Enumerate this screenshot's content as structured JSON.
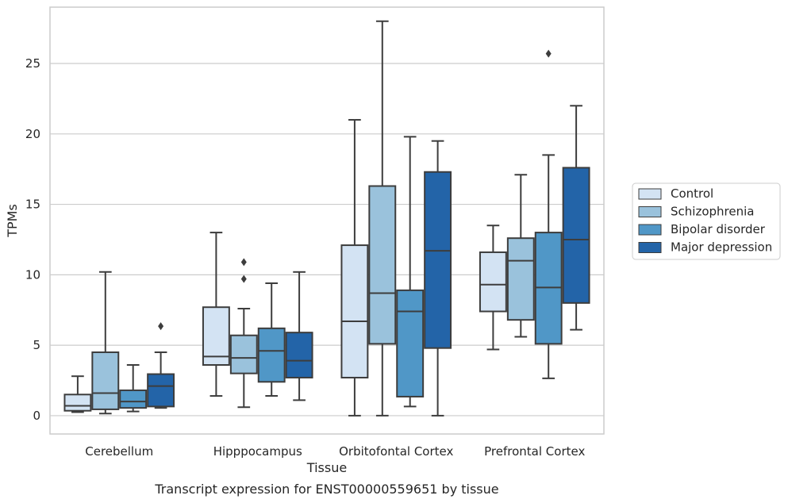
{
  "chart_data": {
    "type": "box",
    "caption": "Transcript expression for ENST00000559651 by tissue",
    "xlabel": "Tissue",
    "ylabel": "TPMs",
    "ylim": [
      -1.3,
      29.0
    ],
    "yticks": [
      0,
      5,
      10,
      15,
      20,
      25
    ],
    "grid": "horizontal",
    "legend_position": "right",
    "categories": [
      "Cerebellum",
      "Hipppocampus",
      "Orbitofontal Cortex",
      "Prefrontal Cortex"
    ],
    "series": [
      {
        "name": "Control",
        "color": "#d3e3f3",
        "boxes": [
          {
            "whislo": 0.25,
            "q1": 0.35,
            "med": 0.7,
            "q3": 1.5,
            "whishi": 2.8,
            "fliers": []
          },
          {
            "whislo": 1.4,
            "q1": 3.6,
            "med": 4.2,
            "q3": 7.7,
            "whishi": 13.0,
            "fliers": []
          },
          {
            "whislo": 0.0,
            "q1": 2.7,
            "med": 6.7,
            "q3": 12.1,
            "whishi": 21.0,
            "fliers": []
          },
          {
            "whislo": 4.7,
            "q1": 7.4,
            "med": 9.3,
            "q3": 11.6,
            "whishi": 13.5,
            "fliers": []
          }
        ]
      },
      {
        "name": "Schizophrenia",
        "color": "#9ac2dc",
        "boxes": [
          {
            "whislo": 0.15,
            "q1": 0.45,
            "med": 1.6,
            "q3": 4.5,
            "whishi": 10.2,
            "fliers": []
          },
          {
            "whislo": 0.6,
            "q1": 3.0,
            "med": 4.1,
            "q3": 5.7,
            "whishi": 7.6,
            "fliers": [
              9.7,
              10.9
            ]
          },
          {
            "whislo": 0.0,
            "q1": 5.1,
            "med": 8.7,
            "q3": 16.3,
            "whishi": 28.0,
            "fliers": []
          },
          {
            "whislo": 5.6,
            "q1": 6.8,
            "med": 11.0,
            "q3": 12.6,
            "whishi": 17.1,
            "fliers": []
          }
        ]
      },
      {
        "name": "Bipolar disorder",
        "color": "#5097c7",
        "boxes": [
          {
            "whislo": 0.3,
            "q1": 0.55,
            "med": 1.0,
            "q3": 1.8,
            "whishi": 3.6,
            "fliers": []
          },
          {
            "whislo": 1.4,
            "q1": 2.4,
            "med": 4.6,
            "q3": 6.2,
            "whishi": 9.4,
            "fliers": []
          },
          {
            "whislo": 0.65,
            "q1": 1.35,
            "med": 7.4,
            "q3": 8.9,
            "whishi": 19.8,
            "fliers": []
          },
          {
            "whislo": 2.65,
            "q1": 5.1,
            "med": 9.1,
            "q3": 13.0,
            "whishi": 18.5,
            "fliers": [
              25.7
            ]
          }
        ]
      },
      {
        "name": "Major depression",
        "color": "#2364a8",
        "boxes": [
          {
            "whislo": 0.55,
            "q1": 0.65,
            "med": 2.1,
            "q3": 2.95,
            "whishi": 4.5,
            "fliers": [
              6.35
            ]
          },
          {
            "whislo": 1.1,
            "q1": 2.7,
            "med": 3.9,
            "q3": 5.9,
            "whishi": 10.2,
            "fliers": []
          },
          {
            "whislo": 0.0,
            "q1": 4.8,
            "med": 11.7,
            "q3": 17.3,
            "whishi": 19.5,
            "fliers": []
          },
          {
            "whislo": 6.1,
            "q1": 8.0,
            "med": 12.5,
            "q3": 17.6,
            "whishi": 22.0,
            "fliers": []
          }
        ]
      }
    ]
  }
}
